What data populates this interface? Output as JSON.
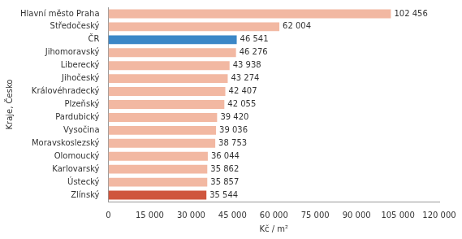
{
  "chart_data": {
    "type": "bar",
    "orientation": "horizontal",
    "categories": [
      "Hlavní město Praha",
      "Středočeský",
      "ČR",
      "Jihomoravský",
      "Liberecký",
      "Jihočeský",
      "Královéhradecký",
      "Plzeňský",
      "Pardubický",
      "Vysočina",
      "Moravskoslezský",
      "Olomoucký",
      "Karlovarský",
      "Ústecký",
      "Zlínský"
    ],
    "values": [
      102456,
      62004,
      46541,
      46276,
      43938,
      43274,
      42407,
      42055,
      39420,
      39036,
      38753,
      36044,
      35862,
      35857,
      35544
    ],
    "value_labels": [
      "102 456",
      "62 004",
      "46 541",
      "46 276",
      "43 938",
      "43 274",
      "42 407",
      "42 055",
      "39 420",
      "39 036",
      "38 753",
      "36 044",
      "35 862",
      "35 857",
      "35 544"
    ],
    "colors": [
      "#f2b8a2",
      "#f2b8a2",
      "#3b87c7",
      "#f2b8a2",
      "#f2b8a2",
      "#f2b8a2",
      "#f2b8a2",
      "#f2b8a2",
      "#f2b8a2",
      "#f2b8a2",
      "#f2b8a2",
      "#f2b8a2",
      "#f2b8a2",
      "#f2b8a2",
      "#cf553d"
    ],
    "xlabel": "Kč / m²",
    "ylabel": "Kraje, Česko",
    "xlim": [
      0,
      120000
    ],
    "xticks": [
      0,
      {
        "value": 15000,
        "label": "15 000"
      },
      {
        "value": 30000,
        "label": "30 000"
      },
      {
        "value": 45000,
        "label": "45 000"
      },
      {
        "value": 60000,
        "label": "60 000"
      },
      {
        "value": 75000,
        "label": "75 000"
      },
      {
        "value": 90000,
        "label": "90 000"
      },
      {
        "value": 105000,
        "label": "105 000"
      },
      {
        "value": 120000,
        "label": "120 000"
      }
    ],
    "grid": false,
    "data_labels": true
  }
}
